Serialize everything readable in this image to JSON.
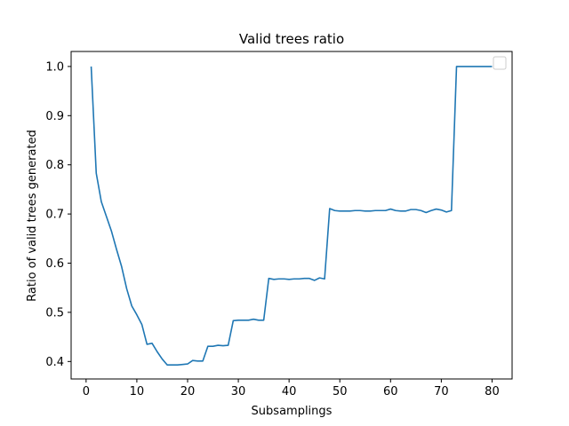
{
  "chart_data": {
    "type": "line",
    "title": "Valid trees ratio",
    "xlabel": "Subsamplings",
    "ylabel": "Ratio of valid trees generated",
    "xlim": [
      -2.95,
      83.95
    ],
    "ylim": [
      0.3645,
      1.0305
    ],
    "xticks": [
      0,
      10,
      20,
      30,
      40,
      50,
      60,
      70,
      80
    ],
    "yticks": [
      0.4,
      0.5,
      0.6,
      0.7,
      0.8,
      0.9,
      1.0
    ],
    "ytick_labels": [
      "0.4",
      "0.5",
      "0.6",
      "0.7",
      "0.8",
      "0.9",
      "1.0"
    ],
    "grid": false,
    "legend": {
      "placement": "top-right",
      "entries": []
    },
    "series": [
      {
        "color": "#1f77b4",
        "x": [
          1,
          2,
          3,
          4,
          5,
          6,
          7,
          8,
          9,
          10,
          11,
          12,
          13,
          14,
          15,
          16,
          17,
          18,
          19,
          20,
          21,
          22,
          23,
          24,
          25,
          26,
          27,
          28,
          29,
          30,
          31,
          32,
          33,
          34,
          35,
          36,
          37,
          38,
          39,
          40,
          41,
          42,
          43,
          44,
          45,
          46,
          47,
          48,
          49,
          50,
          51,
          52,
          53,
          54,
          55,
          56,
          57,
          58,
          59,
          60,
          61,
          62,
          63,
          64,
          65,
          66,
          67,
          68,
          69,
          70,
          71,
          72,
          73,
          74,
          75,
          76,
          77,
          78,
          79,
          80
        ],
        "y": [
          1.0,
          0.783,
          0.725,
          0.695,
          0.665,
          0.628,
          0.593,
          0.548,
          0.513,
          0.495,
          0.475,
          0.435,
          0.437,
          0.42,
          0.405,
          0.393,
          0.393,
          0.393,
          0.394,
          0.395,
          0.402,
          0.401,
          0.401,
          0.431,
          0.431,
          0.433,
          0.432,
          0.433,
          0.483,
          0.484,
          0.484,
          0.484,
          0.486,
          0.484,
          0.484,
          0.569,
          0.567,
          0.568,
          0.568,
          0.567,
          0.568,
          0.568,
          0.569,
          0.569,
          0.565,
          0.57,
          0.568,
          0.711,
          0.707,
          0.706,
          0.706,
          0.706,
          0.707,
          0.707,
          0.706,
          0.706,
          0.707,
          0.707,
          0.707,
          0.71,
          0.707,
          0.706,
          0.706,
          0.709,
          0.709,
          0.707,
          0.703,
          0.707,
          0.71,
          0.708,
          0.704,
          0.707,
          1.0,
          1.0,
          1.0,
          1.0,
          1.0,
          1.0,
          1.0,
          1.0
        ]
      }
    ]
  }
}
